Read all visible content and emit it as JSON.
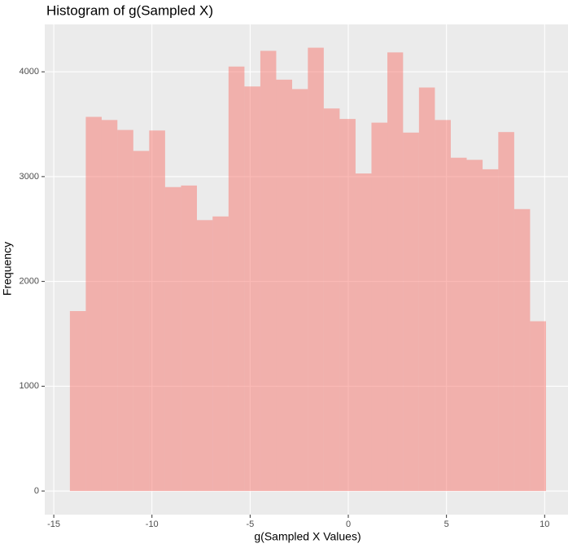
{
  "chart_data": {
    "type": "histogram",
    "title": "Histogram of g(Sampled X)",
    "x_label": "g(Sampled X Values)",
    "y_label": "Frequency",
    "bins": [
      -14.18,
      -13.37,
      -12.56,
      -11.76,
      -10.95,
      -10.14,
      -9.33,
      -8.52,
      -7.71,
      -6.91,
      -6.1,
      -5.29,
      -4.48,
      -3.67,
      -2.86,
      -2.06,
      -1.25,
      -0.44,
      0.37,
      1.18,
      1.99,
      2.79,
      3.6,
      4.41,
      5.22,
      6.03,
      6.84,
      7.64,
      8.45,
      9.26,
      10.07
    ],
    "counts": [
      1717,
      3570,
      3540,
      3445,
      3245,
      3440,
      2900,
      2915,
      2585,
      2620,
      4050,
      3860,
      4200,
      3925,
      3835,
      4230,
      3650,
      3550,
      3030,
      3515,
      4185,
      3420,
      3850,
      3540,
      3180,
      3160,
      3070,
      3425,
      2690,
      1620
    ],
    "color": "#F8766D",
    "alpha": 0.5,
    "xlim": [
      -15.46,
      11.19
    ],
    "ylim": [
      -225,
      4452
    ],
    "xticks": [
      -15,
      -10,
      -5,
      0,
      5,
      10
    ],
    "yticks": [
      0,
      1000,
      2000,
      3000,
      4000
    ],
    "grid": true
  }
}
